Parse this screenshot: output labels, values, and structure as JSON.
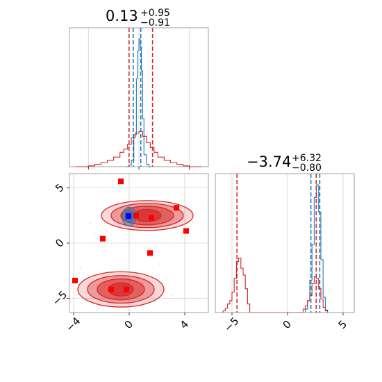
{
  "chart_data": [
    {
      "type": "histogram",
      "panel": "top-left",
      "title_value": "0.13",
      "title_plus": "+0.95",
      "title_minus": "−0.91",
      "xlim": [
        -5.5,
        5.5
      ],
      "grid": true,
      "series": [
        {
          "color": "#1f77b4",
          "bin_edges": [
            -1.0,
            -0.8,
            -0.6,
            -0.4,
            -0.2,
            -0.1,
            0.0,
            0.1,
            0.2,
            0.3,
            0.4,
            0.6,
            0.8,
            1.0
          ],
          "counts": [
            0,
            2,
            8,
            40,
            110,
            145,
            160,
            150,
            120,
            60,
            15,
            3,
            0
          ]
        },
        {
          "color": "#d62728",
          "bin_edges": [
            -5.0,
            -4.0,
            -3.5,
            -3.0,
            -2.5,
            -2.0,
            -1.5,
            -1.2,
            -0.9,
            -0.6,
            -0.3,
            0.0,
            0.3,
            0.6,
            0.9,
            1.2,
            1.5,
            2.0,
            2.5,
            3.0,
            3.5,
            4.0,
            5.0
          ],
          "counts": [
            0,
            1,
            3,
            5,
            8,
            12,
            18,
            22,
            28,
            36,
            42,
            44,
            38,
            30,
            24,
            18,
            12,
            8,
            5,
            3,
            1,
            0
          ]
        }
      ],
      "vlines": [
        {
          "x": -0.78,
          "color": "#d62728"
        },
        {
          "x": 1.08,
          "color": "#d62728"
        },
        {
          "x": -0.45,
          "color": "#1f77b4"
        },
        {
          "x": 0.15,
          "color": "#1f77b4"
        }
      ]
    },
    {
      "type": "contour-scatter",
      "panel": "bottom-left",
      "xlim": [
        -4.3,
        5.7
      ],
      "ylim": [
        -6.3,
        6.3
      ],
      "xticks": [
        "−4",
        "0",
        "4"
      ],
      "xtick_values": [
        -4,
        0,
        4
      ],
      "yticks": [
        "−5",
        "0",
        "5"
      ],
      "ytick_values": [
        -5,
        0,
        5
      ],
      "grid": true,
      "contours_red": [
        {
          "cx": 1.3,
          "cy": 2.5,
          "rx": [
            3.3,
            2.6,
            1.9,
            1.0
          ],
          "ry": [
            1.35,
            1.1,
            0.85,
            0.55
          ]
        },
        {
          "cx": -0.6,
          "cy": -4.2,
          "rx": [
            3.1,
            2.4,
            1.7,
            0.9
          ],
          "ry": [
            1.6,
            1.25,
            0.95,
            0.6
          ]
        }
      ],
      "contours_blue": [
        {
          "cx": 0.0,
          "cy": 2.4,
          "rx": [
            0.5,
            0.3
          ],
          "ry": [
            0.85,
            0.55
          ]
        }
      ],
      "red_points": [
        [
          -0.6,
          5.6
        ],
        [
          3.4,
          3.2
        ],
        [
          0.5,
          2.5
        ],
        [
          1.6,
          2.3
        ],
        [
          4.1,
          1.1
        ],
        [
          -1.9,
          0.4
        ],
        [
          1.5,
          -0.9
        ],
        [
          -3.9,
          -3.4
        ],
        [
          -1.3,
          -4.2
        ],
        [
          -0.2,
          -4.2
        ]
      ],
      "blue_point": [
        -0.05,
        2.45
      ],
      "scatter_dots": [
        [
          -2.8,
          1.8
        ],
        [
          -2.5,
          0.9
        ],
        [
          -1.5,
          2.8
        ],
        [
          2.4,
          1.2
        ],
        [
          3.8,
          0.7
        ],
        [
          -3.5,
          -2.3
        ],
        [
          -2.4,
          -2.9
        ],
        [
          2.7,
          -3.2
        ],
        [
          3.1,
          -4.7
        ],
        [
          -1.6,
          1.1
        ],
        [
          1.9,
          3.6
        ],
        [
          -0.8,
          3.7
        ],
        [
          4.6,
          1.9
        ],
        [
          2.2,
          -1.9
        ],
        [
          -2.9,
          -5.3
        ]
      ]
    },
    {
      "type": "histogram",
      "panel": "bottom-right",
      "title_value": "−3.74",
      "title_plus": "+6.32",
      "title_minus": "−0.80",
      "xlim": [
        -6.5,
        6.0
      ],
      "xticks": [
        "−5",
        "0",
        "5"
      ],
      "xtick_values": [
        -5,
        0,
        5
      ],
      "grid": true,
      "series": [
        {
          "color": "#1f77b4",
          "bin_edges": [
            1.6,
            1.8,
            2.0,
            2.2,
            2.4,
            2.6,
            2.8,
            3.0,
            3.2,
            3.4,
            3.6
          ],
          "counts": [
            4,
            14,
            38,
            80,
            135,
            150,
            118,
            62,
            18,
            3
          ]
        },
        {
          "color": "#d62728",
          "bin_edges": [
            -5.8,
            -5.6,
            -5.4,
            -5.2,
            -5.0,
            -4.8,
            -4.6,
            -4.4,
            -4.2,
            -4.0,
            -3.8,
            -3.6,
            -3.4,
            1.4,
            1.6,
            1.8,
            2.0,
            2.2,
            2.4,
            2.6,
            2.8,
            3.0,
            3.2,
            3.4,
            3.6
          ],
          "counts": [
            2,
            5,
            10,
            14,
            24,
            40,
            60,
            64,
            52,
            44,
            28,
            10,
            0,
            4,
            8,
            14,
            20,
            34,
            42,
            40,
            28,
            16,
            6,
            2
          ]
        }
      ],
      "vlines": [
        {
          "x": -4.55,
          "color": "#d62728"
        },
        {
          "x": 2.58,
          "color": "#d62728"
        },
        {
          "x": 2.1,
          "color": "#1f77b4"
        },
        {
          "x": 2.9,
          "color": "#1f77b4"
        }
      ]
    }
  ]
}
